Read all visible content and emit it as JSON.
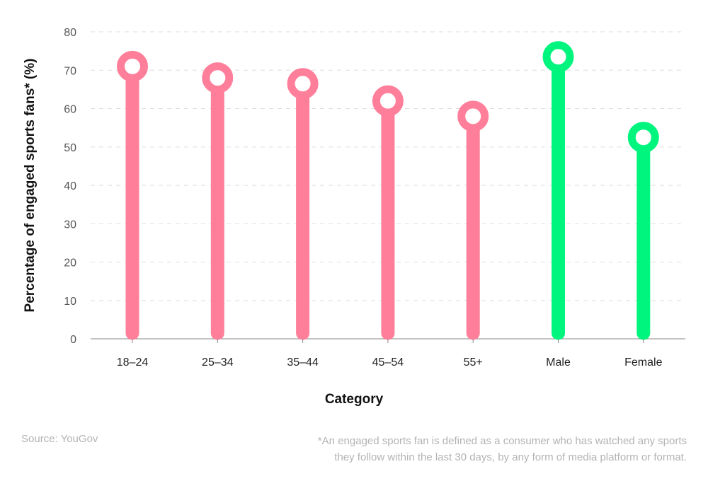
{
  "chart_data": {
    "type": "lollipop",
    "categories": [
      "18–24",
      "25–34",
      "35–44",
      "45–54",
      "55+",
      "Male",
      "Female"
    ],
    "values": [
      71,
      68,
      66.5,
      62,
      58,
      73.5,
      52.5
    ],
    "colors": [
      "#ff7f9a",
      "#ff7f9a",
      "#ff7f9a",
      "#ff7f9a",
      "#ff7f9a",
      "#00f57e",
      "#00f57e"
    ],
    "xlabel": "Category",
    "ylabel": "Percentage of engaged sports fans* (%)",
    "ylim": [
      0,
      80
    ],
    "yticks": [
      0,
      10,
      20,
      30,
      40,
      50,
      60,
      70,
      80
    ],
    "grid": true
  },
  "footer": {
    "source": "Source: YouGov",
    "note_line1": "*An engaged sports fan is defined as a consumer who has watched any sports",
    "note_line2": "they follow within the last 30 days, by any form of media platform or format."
  }
}
